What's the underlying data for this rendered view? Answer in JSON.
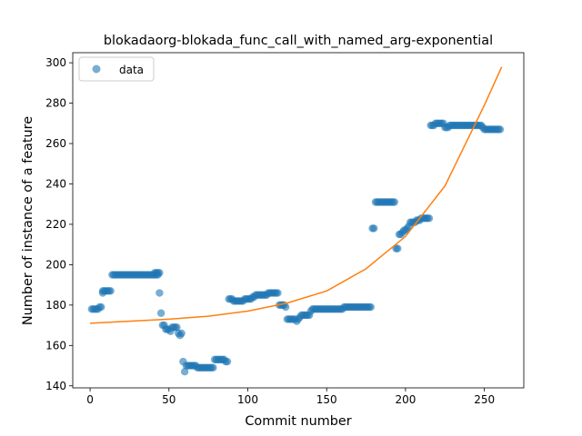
{
  "chart_data": {
    "type": "scatter",
    "title": "blokadaorg-blokada_func_call_with_named_arg-exponential",
    "xlabel": "Commit number",
    "ylabel": "Number of instance of a feature",
    "xlim": [
      -11,
      275
    ],
    "ylim": [
      139,
      305
    ],
    "xticks": [
      0,
      50,
      100,
      150,
      200,
      250
    ],
    "yticks": [
      140,
      160,
      180,
      200,
      220,
      240,
      260,
      280,
      300
    ],
    "grid": false,
    "legend_position": "top-left",
    "colors": {
      "points": "#1f77b4",
      "fit": "#ff7f0e"
    },
    "series": [
      {
        "name": "data",
        "kind": "points",
        "segments": [
          {
            "x_from": 1,
            "x_to": 5,
            "y": 178
          },
          {
            "x_from": 6,
            "x_to": 7,
            "y": 179
          },
          {
            "x_from": 8,
            "x_to": 13,
            "y": 187
          },
          {
            "x_from": 14,
            "x_to": 43,
            "y": 195
          },
          {
            "x_from": 41,
            "x_to": 44,
            "y": 196
          }
        ],
        "points": [
          [
            8,
            186
          ],
          [
            44,
            186
          ],
          [
            45,
            176
          ],
          [
            46,
            170
          ],
          [
            47,
            170
          ],
          [
            48,
            168
          ],
          [
            49,
            168
          ],
          [
            50,
            168
          ],
          [
            51,
            167
          ],
          [
            52,
            169
          ],
          [
            53,
            169
          ],
          [
            54,
            169
          ],
          [
            55,
            169
          ],
          [
            56,
            166
          ],
          [
            57,
            165
          ],
          [
            58,
            166
          ],
          [
            59,
            152
          ],
          [
            60,
            147
          ],
          [
            61,
            150
          ],
          [
            62,
            150
          ],
          [
            63,
            150
          ],
          [
            64,
            150
          ],
          [
            65,
            150
          ],
          [
            66,
            150
          ],
          [
            67,
            150
          ],
          [
            68,
            149
          ],
          [
            69,
            149
          ],
          [
            70,
            149
          ],
          [
            71,
            149
          ],
          [
            72,
            149
          ],
          [
            73,
            149
          ],
          [
            74,
            149
          ],
          [
            75,
            149
          ],
          [
            76,
            149
          ],
          [
            77,
            149
          ],
          [
            78,
            149
          ],
          [
            79,
            153
          ],
          [
            80,
            153
          ],
          [
            81,
            153
          ],
          [
            82,
            153
          ],
          [
            83,
            153
          ],
          [
            84,
            153
          ],
          [
            85,
            153
          ],
          [
            86,
            152
          ],
          [
            87,
            152
          ],
          [
            88,
            183
          ],
          [
            89,
            183
          ],
          [
            90,
            183
          ],
          [
            91,
            182
          ],
          [
            92,
            182
          ],
          [
            93,
            182
          ],
          [
            94,
            182
          ],
          [
            95,
            182
          ],
          [
            96,
            182
          ],
          [
            97,
            182
          ],
          [
            98,
            183
          ],
          [
            99,
            183
          ],
          [
            100,
            183
          ],
          [
            101,
            183
          ],
          [
            102,
            183
          ],
          [
            103,
            184
          ],
          [
            104,
            184
          ],
          [
            105,
            185
          ],
          [
            106,
            185
          ],
          [
            107,
            185
          ],
          [
            108,
            185
          ],
          [
            109,
            185
          ],
          [
            110,
            185
          ],
          [
            111,
            185
          ],
          [
            112,
            185
          ],
          [
            113,
            186
          ],
          [
            114,
            186
          ],
          [
            115,
            186
          ],
          [
            116,
            186
          ],
          [
            117,
            186
          ],
          [
            118,
            186
          ],
          [
            119,
            186
          ],
          [
            120,
            180
          ],
          [
            121,
            180
          ],
          [
            122,
            180
          ],
          [
            123,
            180
          ],
          [
            124,
            179
          ],
          [
            125,
            173
          ],
          [
            126,
            173
          ],
          [
            127,
            173
          ],
          [
            128,
            173
          ],
          [
            129,
            173
          ],
          [
            130,
            173
          ],
          [
            131,
            172
          ],
          [
            132,
            173
          ],
          [
            133,
            174
          ],
          [
            134,
            175
          ],
          [
            135,
            175
          ],
          [
            136,
            175
          ],
          [
            137,
            175
          ],
          [
            138,
            175
          ],
          [
            139,
            175
          ],
          [
            140,
            177
          ],
          [
            141,
            178
          ],
          [
            142,
            178
          ],
          [
            143,
            178
          ],
          [
            144,
            178
          ],
          [
            145,
            178
          ],
          [
            146,
            178
          ],
          [
            147,
            178
          ],
          [
            148,
            178
          ],
          [
            149,
            178
          ],
          [
            150,
            178
          ],
          [
            151,
            178
          ],
          [
            152,
            178
          ],
          [
            153,
            178
          ],
          [
            154,
            178
          ],
          [
            155,
            178
          ],
          [
            156,
            178
          ],
          [
            157,
            178
          ],
          [
            158,
            178
          ],
          [
            159,
            178
          ],
          [
            160,
            178
          ],
          [
            161,
            179
          ],
          [
            162,
            179
          ],
          [
            163,
            179
          ],
          [
            164,
            179
          ],
          [
            165,
            179
          ],
          [
            166,
            179
          ],
          [
            167,
            179
          ],
          [
            168,
            179
          ],
          [
            169,
            179
          ],
          [
            170,
            179
          ],
          [
            171,
            179
          ],
          [
            172,
            179
          ],
          [
            173,
            179
          ],
          [
            174,
            179
          ],
          [
            175,
            179
          ],
          [
            176,
            179
          ],
          [
            177,
            179
          ],
          [
            178,
            179
          ],
          [
            179,
            218
          ],
          [
            180,
            218
          ],
          [
            181,
            231
          ],
          [
            182,
            231
          ],
          [
            183,
            231
          ],
          [
            184,
            231
          ],
          [
            185,
            231
          ],
          [
            186,
            231
          ],
          [
            187,
            231
          ],
          [
            188,
            231
          ],
          [
            189,
            231
          ],
          [
            190,
            231
          ],
          [
            191,
            231
          ],
          [
            192,
            231
          ],
          [
            193,
            231
          ],
          [
            194,
            208
          ],
          [
            195,
            208
          ],
          [
            196,
            215
          ],
          [
            197,
            215
          ],
          [
            198,
            216
          ],
          [
            199,
            217
          ],
          [
            200,
            217
          ],
          [
            201,
            218
          ],
          [
            202,
            219
          ],
          [
            203,
            221
          ],
          [
            204,
            221
          ],
          [
            205,
            221
          ],
          [
            206,
            221
          ],
          [
            207,
            222
          ],
          [
            208,
            222
          ],
          [
            209,
            222
          ],
          [
            210,
            223
          ],
          [
            211,
            223
          ],
          [
            212,
            223
          ],
          [
            213,
            223
          ],
          [
            214,
            223
          ],
          [
            215,
            223
          ],
          [
            216,
            269
          ],
          [
            217,
            269
          ],
          [
            218,
            269
          ],
          [
            219,
            270
          ],
          [
            220,
            270
          ],
          [
            221,
            270
          ],
          [
            222,
            270
          ],
          [
            223,
            270
          ],
          [
            224,
            270
          ],
          [
            225,
            268
          ],
          [
            226,
            268
          ],
          [
            227,
            268
          ],
          [
            228,
            269
          ],
          [
            229,
            269
          ],
          [
            230,
            269
          ],
          [
            231,
            269
          ],
          [
            232,
            269
          ],
          [
            233,
            269
          ],
          [
            234,
            269
          ],
          [
            235,
            269
          ],
          [
            236,
            269
          ],
          [
            237,
            269
          ],
          [
            238,
            269
          ],
          [
            239,
            269
          ],
          [
            240,
            269
          ],
          [
            241,
            269
          ],
          [
            242,
            269
          ],
          [
            243,
            269
          ],
          [
            244,
            269
          ],
          [
            245,
            269
          ],
          [
            246,
            269
          ],
          [
            247,
            269
          ],
          [
            248,
            269
          ],
          [
            249,
            268
          ],
          [
            250,
            267
          ],
          [
            251,
            267
          ],
          [
            252,
            267
          ],
          [
            253,
            267
          ],
          [
            254,
            267
          ],
          [
            255,
            267
          ],
          [
            256,
            267
          ],
          [
            257,
            267
          ],
          [
            258,
            267
          ],
          [
            259,
            267
          ],
          [
            260,
            267
          ]
        ]
      },
      {
        "kind": "line",
        "points": [
          [
            0,
            171
          ],
          [
            25,
            172
          ],
          [
            50,
            173
          ],
          [
            75,
            174.5
          ],
          [
            100,
            177
          ],
          [
            125,
            181
          ],
          [
            150,
            187
          ],
          [
            175,
            198
          ],
          [
            200,
            214
          ],
          [
            225,
            239
          ],
          [
            240,
            263
          ],
          [
            250,
            279
          ],
          [
            261,
            298
          ]
        ]
      }
    ]
  }
}
